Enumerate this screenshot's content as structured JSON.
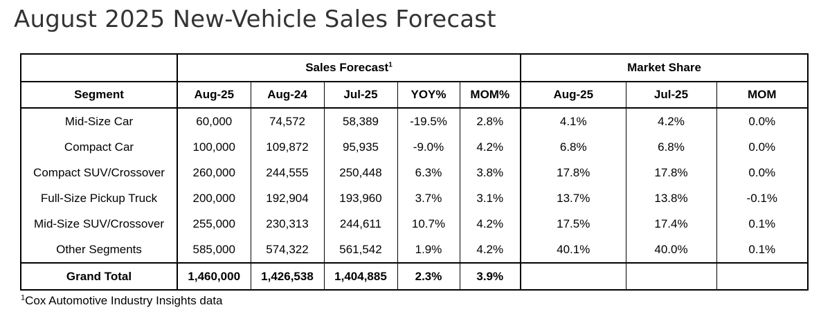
{
  "title": "August 2025 New-Vehicle Sales Forecast",
  "table": {
    "group_headers": {
      "sales_forecast": "Sales Forecast",
      "sales_forecast_note": "1",
      "market_share": "Market Share"
    },
    "columns": [
      "Segment",
      "Aug-25",
      "Aug-24",
      "Jul-25",
      "YOY%",
      "MOM%",
      "Aug-25",
      "Jul-25",
      "MOM"
    ],
    "rows": [
      [
        "Mid-Size Car",
        "60,000",
        "74,572",
        "58,389",
        "-19.5%",
        "2.8%",
        "4.1%",
        "4.2%",
        "0.0%"
      ],
      [
        "Compact Car",
        "100,000",
        "109,872",
        "95,935",
        "-9.0%",
        "4.2%",
        "6.8%",
        "6.8%",
        "0.0%"
      ],
      [
        "Compact SUV/Crossover",
        "260,000",
        "244,555",
        "250,448",
        "6.3%",
        "3.8%",
        "17.8%",
        "17.8%",
        "0.0%"
      ],
      [
        "Full-Size Pickup Truck",
        "200,000",
        "192,904",
        "193,960",
        "3.7%",
        "3.1%",
        "13.7%",
        "13.8%",
        "-0.1%"
      ],
      [
        "Mid-Size SUV/Crossover",
        "255,000",
        "230,313",
        "244,611",
        "10.7%",
        "4.2%",
        "17.5%",
        "17.4%",
        "0.1%"
      ],
      [
        "Other Segments",
        "585,000",
        "574,322",
        "561,542",
        "1.9%",
        "4.2%",
        "40.1%",
        "40.0%",
        "0.1%"
      ]
    ],
    "total": [
      "Grand Total",
      "1,460,000",
      "1,426,538",
      "1,404,885",
      "2.3%",
      "3.9%",
      "",
      "",
      ""
    ]
  },
  "footnote": {
    "marker": "1",
    "text": "Cox Automotive Industry Insights data"
  }
}
